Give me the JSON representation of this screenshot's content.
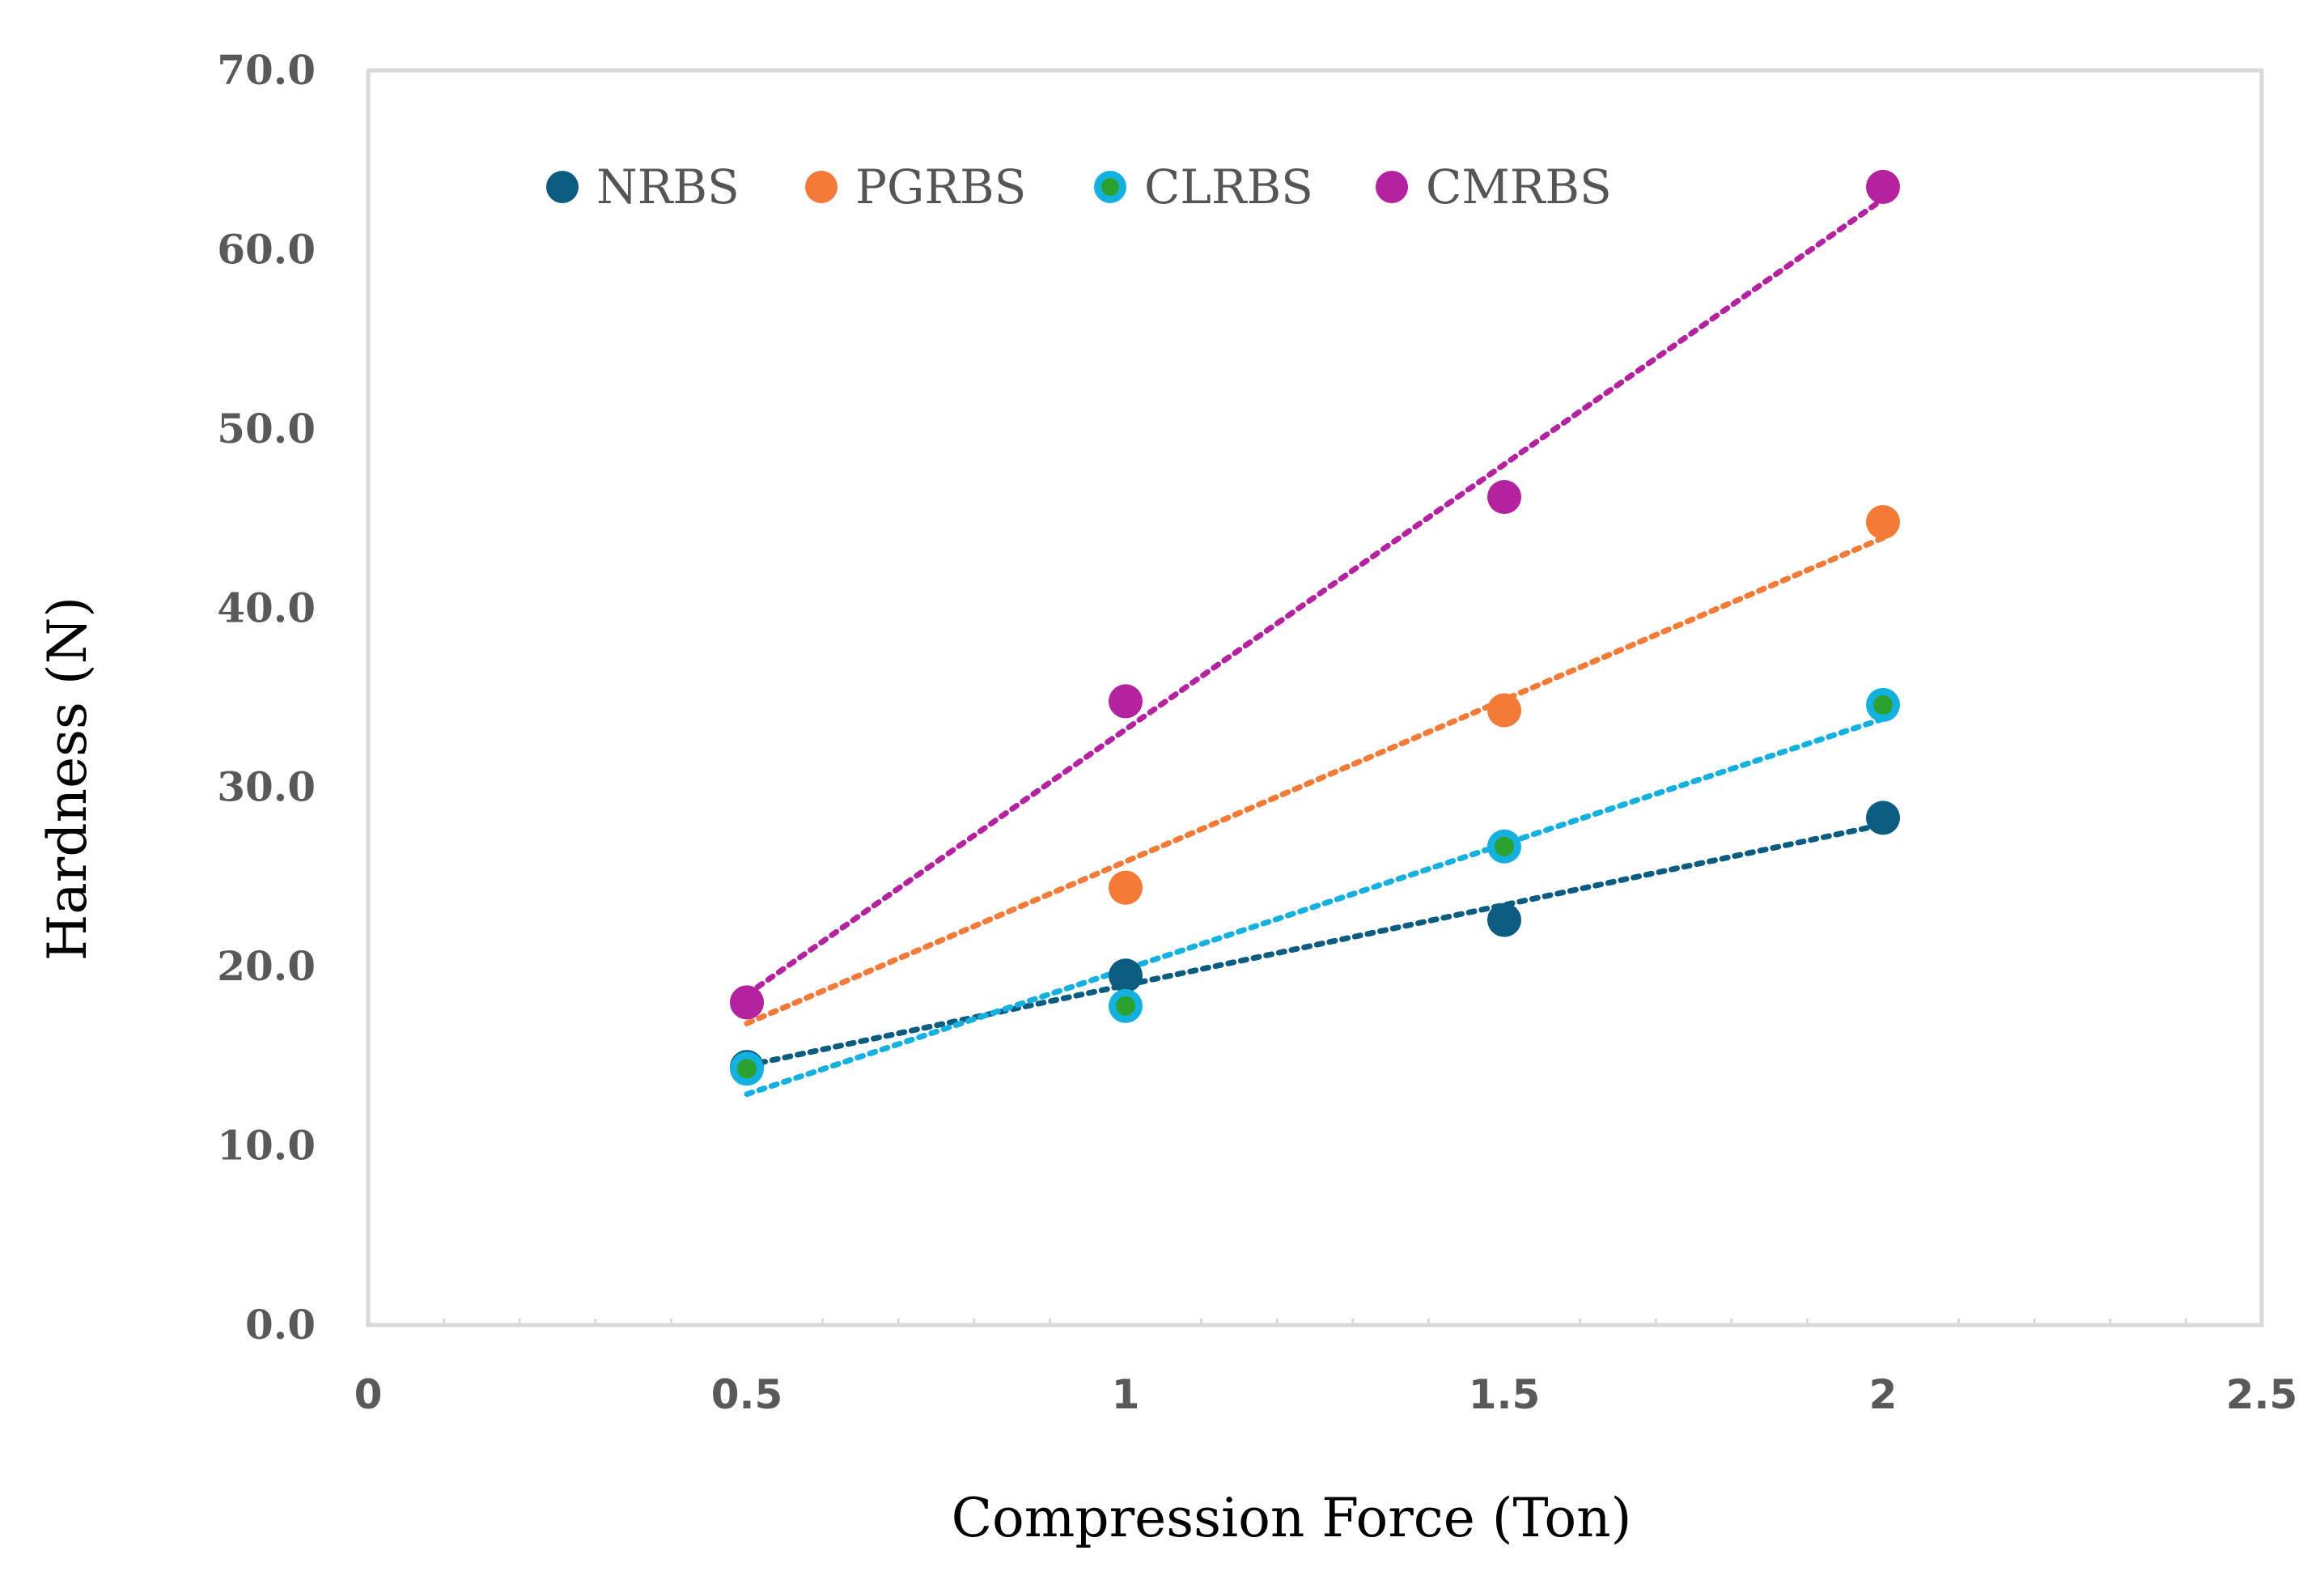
{
  "chart_data": {
    "type": "scatter",
    "title": "",
    "xlabel": "Compression Force (Ton)",
    "ylabel": "Hardness (N)",
    "xlim": [
      0,
      2.5
    ],
    "ylim": [
      0,
      70
    ],
    "x_ticks": [
      "0",
      "0.5",
      "1",
      "1.5",
      "2",
      "2.5"
    ],
    "y_ticks": [
      "0.0",
      "10.0",
      "20.0",
      "30.0",
      "40.0",
      "50.0",
      "60.0",
      "70.0"
    ],
    "legend_position": "top",
    "trendlines": "linear, dotted",
    "series": [
      {
        "name": "NRBS",
        "color": "#0B5C80",
        "inner_color": "#0B5C80",
        "x": [
          0.5,
          1,
          1.5,
          2
        ],
        "values": [
          14.4,
          19.5,
          22.6,
          28.3
        ]
      },
      {
        "name": "PGRBS",
        "color": "#F47A38",
        "inner_color": "#F47A38",
        "x": [
          0.5,
          1,
          1.5,
          2
        ],
        "values": [
          18.0,
          24.4,
          34.3,
          44.8
        ]
      },
      {
        "name": "CLRBS",
        "color": "#14B1E0",
        "inner_color": "#2BA12F",
        "x": [
          0.5,
          1,
          1.5,
          2
        ],
        "values": [
          14.3,
          17.8,
          26.7,
          34.6
        ]
      },
      {
        "name": "CMRBS",
        "color": "#B5229F",
        "inner_color": "#B5229F",
        "x": [
          0.5,
          1,
          1.5,
          2
        ],
        "values": [
          18.0,
          34.8,
          46.2,
          63.5
        ]
      }
    ]
  }
}
